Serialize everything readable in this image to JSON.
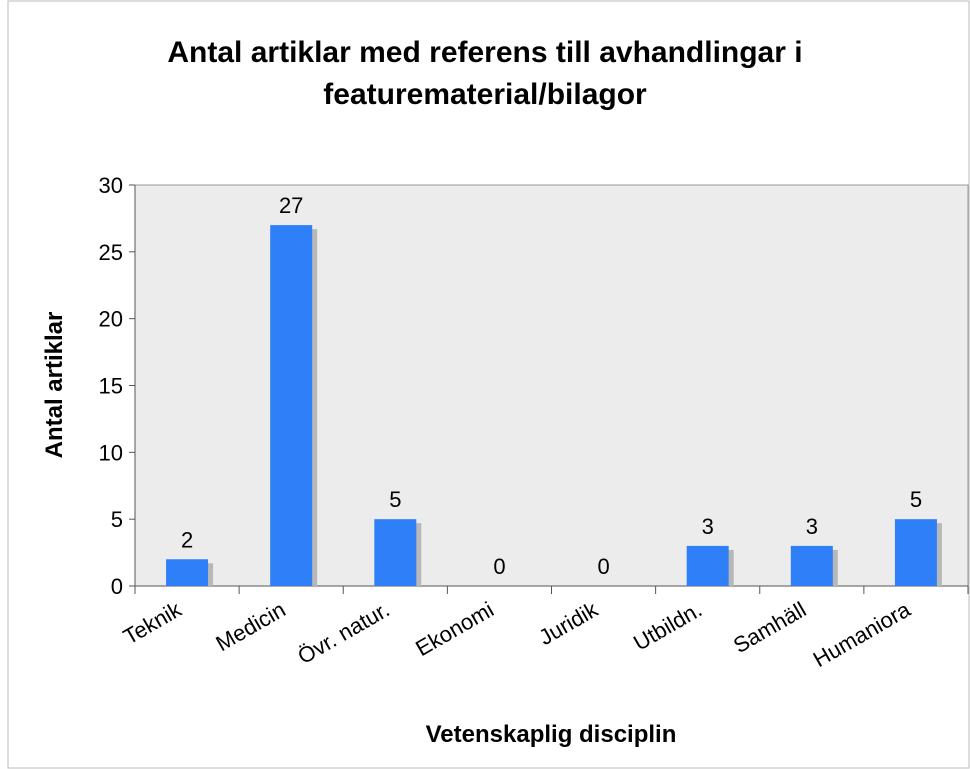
{
  "chart_data": {
    "type": "bar",
    "title": "Antal artiklar med referens till avhandlingar i featurematerial/bilagor",
    "x_label": "Vetenskaplig disciplin",
    "y_label": "Antal artiklar",
    "categories": [
      "Teknik",
      "Medicin",
      "Övr. natur.",
      "Ekonomi",
      "Juridik",
      "Utbildn.",
      "Samhäll",
      "Humaniora"
    ],
    "values": [
      2,
      27,
      5,
      0,
      0,
      3,
      3,
      5
    ],
    "color": "#2f80f8",
    "ylim": [
      0,
      30
    ],
    "yticks": [
      0,
      5,
      10,
      15,
      20,
      25,
      30
    ],
    "grid": false
  }
}
